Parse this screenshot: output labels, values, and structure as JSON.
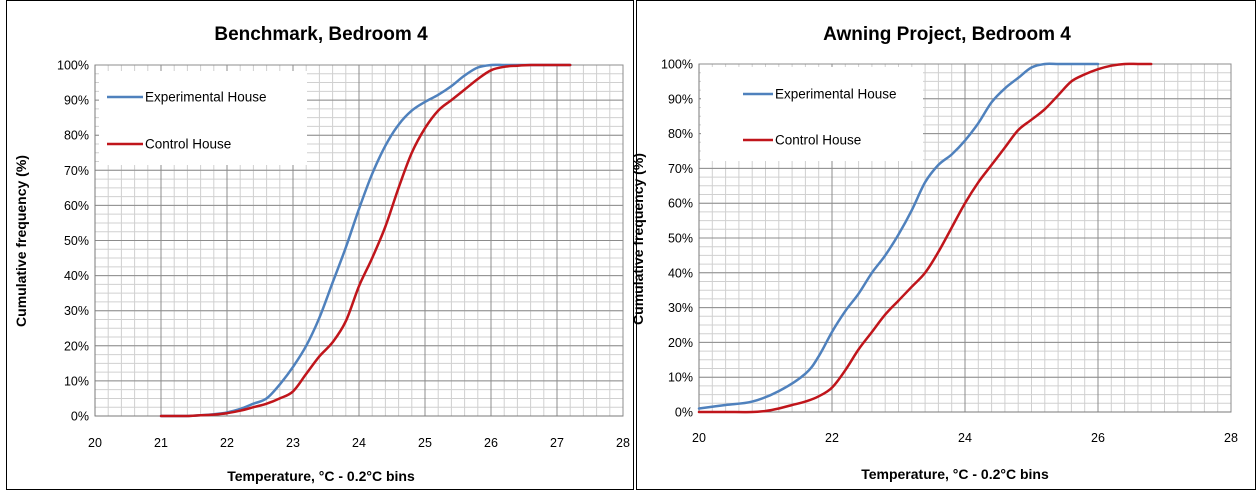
{
  "chart_data": [
    {
      "type": "line",
      "title": "Benchmark, Bedroom 4",
      "xlabel": "Temperature, °C - 0.2°C bins",
      "ylabel": "Cumulative frequency (%)",
      "xlim": [
        20,
        28
      ],
      "ylim": [
        0,
        100
      ],
      "x_ticks": [
        "20",
        "21",
        "22",
        "23",
        "24",
        "25",
        "26",
        "27",
        "28"
      ],
      "y_ticks": [
        "0%",
        "10%",
        "20%",
        "30%",
        "40%",
        "50%",
        "60%",
        "70%",
        "80%",
        "90%",
        "100%"
      ],
      "grid": true,
      "legend_position": "top-left",
      "series": [
        {
          "name": "Experimental House",
          "color": "#4f81bd",
          "x": [
            21.0,
            21.2,
            21.4,
            21.6,
            21.8,
            22.0,
            22.2,
            22.4,
            22.6,
            22.8,
            23.0,
            23.2,
            23.4,
            23.6,
            23.8,
            24.0,
            24.2,
            24.4,
            24.6,
            24.8,
            25.0,
            25.2,
            25.4,
            25.6,
            25.8,
            26.0,
            26.2,
            26.4,
            26.6,
            26.8,
            27.0,
            27.2
          ],
          "y": [
            0,
            0,
            0,
            0.2,
            0.5,
            1,
            2,
            3.5,
            5,
            9,
            14,
            20,
            28,
            38,
            48,
            59,
            69,
            77,
            83,
            87,
            89.5,
            91.5,
            94,
            97,
            99.3,
            100,
            100,
            100,
            100,
            100,
            100,
            100
          ]
        },
        {
          "name": "Control House",
          "color": "#c0151b",
          "x": [
            21.0,
            21.2,
            21.4,
            21.6,
            21.8,
            22.0,
            22.2,
            22.4,
            22.6,
            22.8,
            23.0,
            23.2,
            23.4,
            23.6,
            23.8,
            24.0,
            24.2,
            24.4,
            24.6,
            24.8,
            25.0,
            25.2,
            25.4,
            25.6,
            25.8,
            26.0,
            26.2,
            26.4,
            26.6,
            26.8,
            27.0,
            27.2
          ],
          "y": [
            0,
            0,
            0,
            0.2,
            0.4,
            0.8,
            1.5,
            2.5,
            3.5,
            5,
            7,
            12,
            17,
            21,
            27,
            37,
            45,
            54,
            65,
            75,
            82,
            87,
            90,
            93,
            96,
            98.5,
            99.5,
            99.8,
            100,
            100,
            100,
            100
          ]
        }
      ]
    },
    {
      "type": "line",
      "title": "Awning Project, Bedroom 4",
      "xlabel": "Temperature, °C - 0.2°C bins",
      "ylabel": "Cumulative frequency (%)",
      "xlim": [
        20,
        28
      ],
      "ylim": [
        0,
        100
      ],
      "x_ticks": [
        "20",
        "22",
        "24",
        "26",
        "28"
      ],
      "y_ticks": [
        "0%",
        "10%",
        "20%",
        "30%",
        "40%",
        "50%",
        "60%",
        "70%",
        "80%",
        "90%",
        "100%"
      ],
      "grid": true,
      "legend_position": "top-left",
      "series": [
        {
          "name": "Experimental House",
          "color": "#4f81bd",
          "x": [
            20.0,
            20.4,
            20.8,
            21.2,
            21.6,
            21.8,
            22.0,
            22.2,
            22.4,
            22.6,
            22.8,
            23.0,
            23.2,
            23.4,
            23.6,
            23.8,
            24.0,
            24.2,
            24.4,
            24.6,
            24.8,
            25.0,
            25.2,
            25.4,
            25.6,
            25.8,
            26.0
          ],
          "y": [
            1,
            2,
            3,
            6,
            11,
            16,
            23,
            29,
            34,
            40,
            45,
            51,
            58,
            66,
            71,
            74,
            78,
            83,
            89,
            93,
            96,
            99,
            100,
            100,
            100,
            100,
            100
          ]
        },
        {
          "name": "Control House",
          "color": "#c0151b",
          "x": [
            20.0,
            20.4,
            20.8,
            21.0,
            21.2,
            21.4,
            21.6,
            21.8,
            22.0,
            22.2,
            22.4,
            22.6,
            22.8,
            23.0,
            23.2,
            23.4,
            23.6,
            23.8,
            24.0,
            24.2,
            24.4,
            24.6,
            24.8,
            25.0,
            25.2,
            25.4,
            25.6,
            25.8,
            26.0,
            26.2,
            26.4,
            26.6,
            26.8
          ],
          "y": [
            0,
            0,
            0,
            0.3,
            1,
            2,
            3,
            4.5,
            7,
            12,
            18,
            23,
            28,
            32,
            36,
            40,
            46,
            53,
            60,
            66,
            71,
            76,
            81,
            84,
            87,
            91,
            95,
            97,
            98.5,
            99.5,
            100,
            100,
            100
          ]
        }
      ]
    }
  ]
}
